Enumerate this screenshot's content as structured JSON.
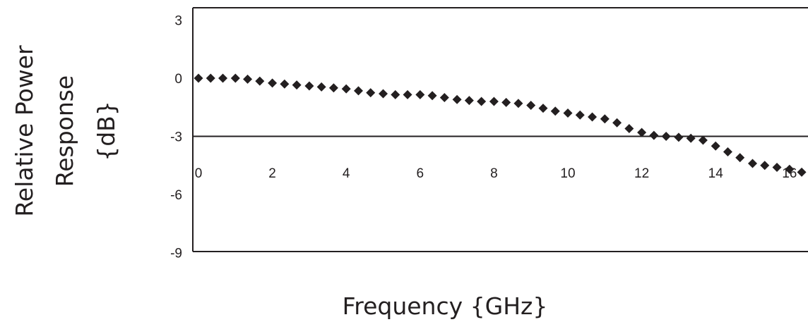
{
  "chart_data": {
    "type": "scatter",
    "title": "",
    "xlabel": "Frequency {GHz}",
    "ylabel_lines": [
      "Relative Power",
      "Response",
      "{dB}"
    ],
    "xlim": [
      0,
      16.7
    ],
    "ylim": [
      -9,
      3
    ],
    "x_ticks": [
      "0",
      "2",
      "4",
      "6",
      "8",
      "10",
      "12",
      "14",
      "16"
    ],
    "y_ticks": [
      "3",
      "0",
      "-3",
      "-6",
      "-9"
    ],
    "reference_line_y": -3,
    "grid": false,
    "legend": "none",
    "marker": "diamond",
    "marker_color": "#231f20",
    "series": [
      {
        "x": [
          0.0,
          0.33,
          0.66,
          1.0,
          1.33,
          1.66,
          2.0,
          2.33,
          2.66,
          3.0,
          3.33,
          3.66,
          4.0,
          4.33,
          4.66,
          5.0,
          5.33,
          5.66,
          6.0,
          6.33,
          6.66,
          7.0,
          7.33,
          7.66,
          8.0,
          8.33,
          8.66,
          9.0,
          9.33,
          9.66,
          10.0,
          10.33,
          10.66,
          11.0,
          11.33,
          11.66,
          12.0,
          12.33,
          12.66,
          13.0,
          13.33,
          13.66,
          14.0,
          14.33,
          14.66,
          15.0,
          15.33,
          15.66,
          16.0,
          16.33
        ],
        "y": [
          0.0,
          0.0,
          0.0,
          0.0,
          -0.05,
          -0.15,
          -0.25,
          -0.3,
          -0.35,
          -0.4,
          -0.45,
          -0.5,
          -0.55,
          -0.65,
          -0.75,
          -0.8,
          -0.85,
          -0.85,
          -0.85,
          -0.9,
          -1.0,
          -1.1,
          -1.15,
          -1.2,
          -1.2,
          -1.25,
          -1.3,
          -1.4,
          -1.55,
          -1.7,
          -1.8,
          -1.9,
          -2.0,
          -2.1,
          -2.3,
          -2.6,
          -2.8,
          -2.95,
          -3.0,
          -3.05,
          -3.1,
          -3.2,
          -3.5,
          -3.8,
          -4.1,
          -4.4,
          -4.5,
          -4.6,
          -4.7,
          -4.85
        ]
      }
    ]
  }
}
